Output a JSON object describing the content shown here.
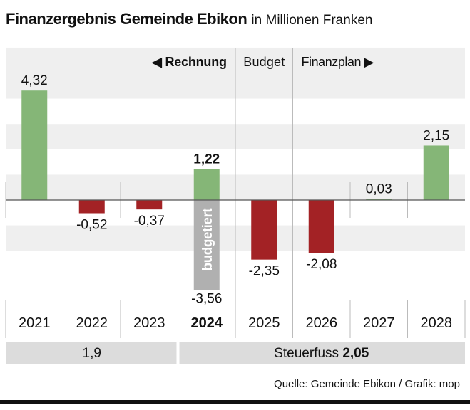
{
  "title": "Finanzergebnis Gemeinde Ebikon",
  "subtitle": "in Millionen Franken",
  "chart_data": {
    "type": "bar",
    "categories": [
      "2021",
      "2022",
      "2023",
      "2024",
      "2025",
      "2026",
      "2027",
      "2028"
    ],
    "highlight_category": "2024",
    "values": [
      4.32,
      -0.52,
      -0.37,
      1.22,
      -2.35,
      -2.08,
      0.03,
      2.15
    ],
    "labels": [
      "4,32",
      "-0,52",
      "-0,37",
      "1,22",
      "-2,35",
      "-2,08",
      "0,03",
      "2,15"
    ],
    "budget_overlay": {
      "category": "2024",
      "value": -3.56,
      "label": "-3,56",
      "text": "budgetiert"
    },
    "sections": {
      "rechnung": "◀ Rechnung",
      "budget": "Budget",
      "finanzplan": "Finanzplan ▶"
    },
    "ylim": [
      -4,
      6
    ],
    "grid": "alternating bands",
    "colors": {
      "positive": "#85b677",
      "negative": "#a32225",
      "budget": "#b0b0b0",
      "band": "#efefef"
    }
  },
  "steuerfuss": {
    "left_value": "1,9",
    "label": "Steuerfuss",
    "right_value": "2,05"
  },
  "source": "Quelle: Gemeinde Ebikon / Grafik: mop"
}
